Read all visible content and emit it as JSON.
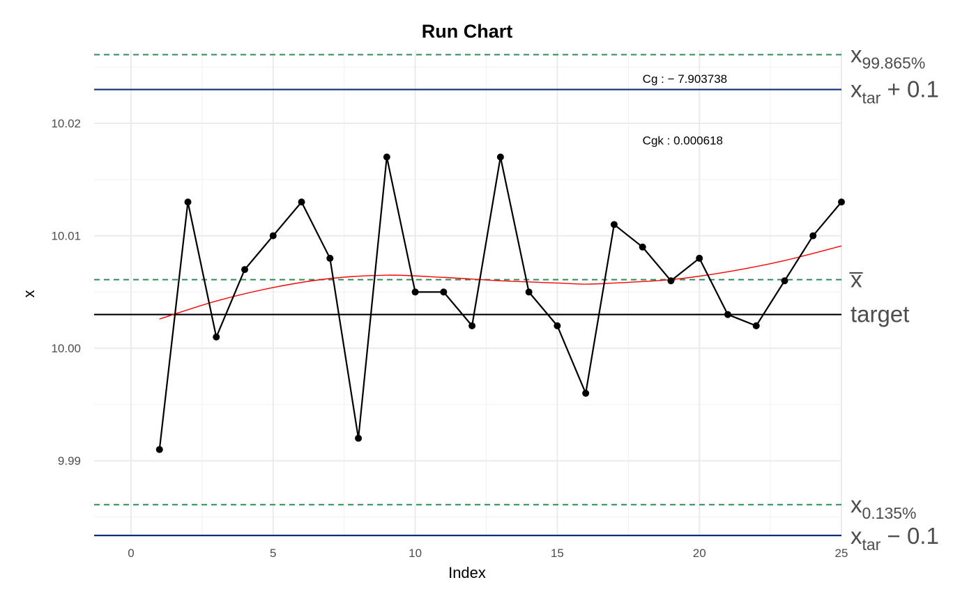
{
  "chart_data": {
    "type": "line",
    "title": "Run Chart",
    "xlabel": "Index",
    "ylabel": "x",
    "xlim": [
      -1.3,
      25
    ],
    "ylim": [
      9.9833,
      10.0265
    ],
    "x_ticks": [
      0,
      5,
      10,
      15,
      20,
      25
    ],
    "y_ticks": [
      9.99,
      10.0,
      10.01,
      10.02
    ],
    "y_tick_labels": [
      "9.99",
      "10.00",
      "10.01",
      "10.02"
    ],
    "grid": true,
    "series": [
      {
        "x": [
          1,
          2,
          3,
          4,
          5,
          6,
          7,
          8,
          9,
          10,
          11,
          12,
          13,
          14,
          15,
          16,
          17,
          18,
          19,
          20,
          21,
          22,
          23,
          24,
          25
        ],
        "values": [
          9.991,
          10.013,
          10.001,
          10.007,
          10.01,
          10.013,
          10.008,
          9.992,
          10.017,
          10.005,
          10.005,
          10.002,
          10.017,
          10.005,
          10.002,
          9.996,
          10.011,
          10.009,
          10.006,
          10.008,
          10.003,
          10.002,
          10.006,
          10.01,
          10.013
        ],
        "color": "#000000"
      }
    ],
    "smooth_curve": {
      "color": "#ff0000",
      "x": [
        1,
        3,
        5,
        7,
        9,
        11,
        13,
        15,
        16,
        17,
        19,
        21,
        23,
        25
      ],
      "values": [
        10.0026,
        10.0042,
        10.0054,
        10.0062,
        10.0065,
        10.0063,
        10.006,
        10.0058,
        10.0057,
        10.0058,
        10.0061,
        10.0068,
        10.0078,
        10.0091
      ]
    },
    "reference_lines": [
      {
        "value": 10.0261,
        "color": "#2e8b57",
        "style": "dashed",
        "label_main": "x",
        "label_sub": "99.865%",
        "label_rest": ""
      },
      {
        "value": 10.023,
        "color": "#0d2f7a",
        "style": "solid",
        "label_main": "x",
        "label_sub": "tar",
        "label_rest": " + 0.1"
      },
      {
        "value": 10.0061,
        "color": "#2e8b57",
        "style": "dashed",
        "label_main": "x̅",
        "label_sub": "",
        "label_rest": ""
      },
      {
        "value": 10.003,
        "color": "#000000",
        "style": "solid",
        "label_main": "target",
        "label_sub": "",
        "label_rest": ""
      },
      {
        "value": 9.9861,
        "color": "#2e8b57",
        "style": "dashed",
        "label_main": "x",
        "label_sub": "0.135%",
        "label_rest": ""
      },
      {
        "value": 9.9833,
        "color": "#0d2f7a",
        "style": "solid",
        "label_main": "x",
        "label_sub": "tar",
        "label_rest": " − 0.1"
      }
    ],
    "annotations": [
      {
        "text": "Cg : − 7.903738",
        "x": 18,
        "y": 10.0236
      },
      {
        "text": "Cgk : 0.000618",
        "x": 18,
        "y": 10.0181
      }
    ]
  }
}
